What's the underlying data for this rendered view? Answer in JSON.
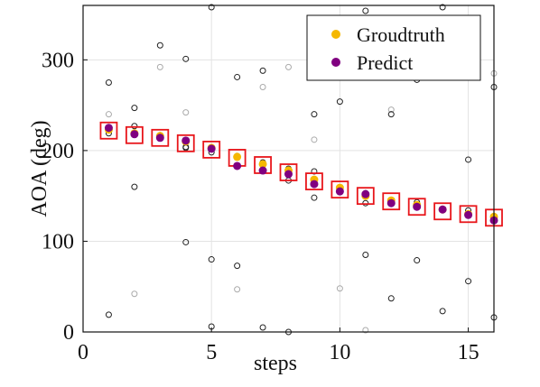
{
  "chart_data": {
    "type": "scatter",
    "title": "",
    "xlabel": "steps",
    "ylabel": "AOA (deg)",
    "xlim": [
      0,
      16
    ],
    "ylim": [
      0,
      360
    ],
    "xticks": [
      0,
      5,
      10,
      15
    ],
    "yticks": [
      0,
      100,
      200,
      300
    ],
    "grid": true,
    "legend_position": "top-right",
    "series": [
      {
        "name": "Groudtruth",
        "color": "#F5B800",
        "marker": "filled-circle",
        "x": [
          1,
          2,
          3,
          4,
          5,
          6,
          7,
          8,
          9,
          10,
          11,
          12,
          13,
          14,
          15,
          16
        ],
        "y": [
          223,
          219,
          216,
          210,
          203,
          193,
          185,
          178,
          168,
          159,
          150,
          145,
          140,
          135,
          130,
          127
        ]
      },
      {
        "name": "Predict",
        "color": "#800080",
        "marker": "filled-circle",
        "x": [
          1,
          2,
          3,
          4,
          5,
          6,
          7,
          8,
          9,
          10,
          11,
          12,
          13,
          14,
          15,
          16
        ],
        "y": [
          225,
          218,
          214,
          211,
          202,
          183,
          178,
          174,
          163,
          155,
          152,
          142,
          138,
          135,
          129,
          123
        ]
      }
    ],
    "selected_boxes": {
      "color": "#E8161B",
      "x": [
        1,
        2,
        3,
        4,
        5,
        6,
        7,
        8,
        9,
        10,
        11,
        12,
        13,
        14,
        15,
        16
      ],
      "y": [
        222,
        217,
        214,
        208,
        201,
        192,
        184,
        176,
        166,
        157,
        150,
        144,
        138,
        133,
        130,
        126
      ]
    },
    "candidates_dark": {
      "color": "#222222",
      "x": [
        1,
        1,
        1,
        2,
        2,
        2,
        3,
        3,
        3,
        4,
        4,
        4,
        4,
        5,
        5,
        5,
        5,
        6,
        6,
        6,
        6,
        7,
        7,
        7,
        8,
        8,
        8,
        9,
        9,
        9,
        9,
        10,
        10,
        11,
        11,
        11,
        11,
        12,
        12,
        12,
        13,
        13,
        13,
        14,
        14,
        15,
        15,
        15,
        16,
        16
      ],
      "y": [
        275,
        219,
        19,
        247,
        227,
        160,
        316,
        217,
        214,
        301,
        203,
        204,
        99,
        358,
        198,
        80,
        6,
        281,
        194,
        183,
        73,
        288,
        187,
        5,
        180,
        167,
        0,
        240,
        177,
        163,
        148,
        254,
        154,
        354,
        153,
        85,
        142,
        240,
        37,
        143,
        278,
        143,
        79,
        358,
        23,
        134,
        56,
        190,
        270,
        16
      ]
    },
    "candidates_light": {
      "color": "#AAAAAA",
      "x": [
        1,
        2,
        3,
        4,
        6,
        7,
        8,
        9,
        10,
        11,
        12,
        13,
        15,
        16
      ],
      "y": [
        240,
        42,
        292,
        242,
        47,
        270,
        292,
        212,
        48,
        2,
        245,
        288,
        130,
        285
      ]
    }
  }
}
